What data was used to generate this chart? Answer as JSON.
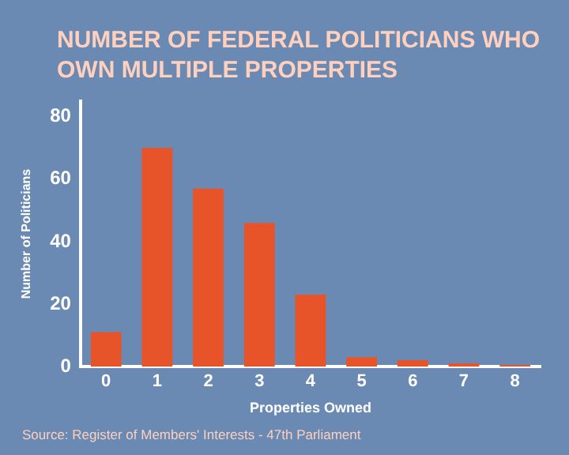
{
  "chart_data": {
    "type": "bar",
    "title": "NUMBER OF FEDERAL POLITICIANS WHO OWN MULTIPLE PROPERTIES",
    "xlabel": "Properties Owned",
    "ylabel": "Number of Politicians",
    "categories": [
      "0",
      "1",
      "2",
      "3",
      "4",
      "5",
      "6",
      "7",
      "8"
    ],
    "values": [
      11,
      70,
      57,
      46,
      23,
      3,
      2,
      1,
      0.5
    ],
    "color": "#e8542a",
    "ylim": [
      0,
      85
    ],
    "yticks": [
      0,
      20,
      40,
      60,
      80
    ],
    "grid": false,
    "annotations": [
      "Source: Register of Members' Interests - 47th Parliament"
    ]
  }
}
